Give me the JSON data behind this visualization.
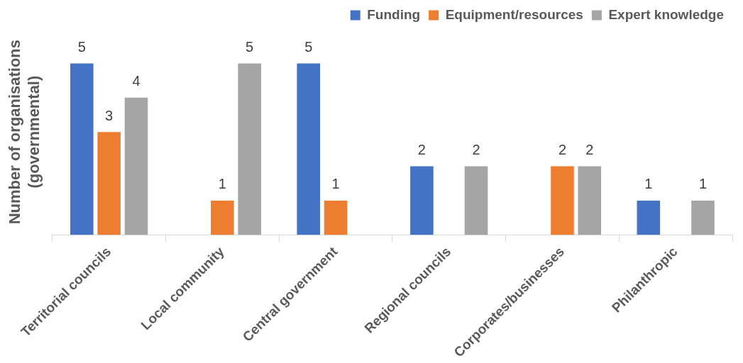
{
  "chart_data": {
    "type": "bar",
    "ylabel": "Number of organisations\n(governmental)",
    "categories": [
      "Territorial councils",
      "Local community",
      "Central government",
      "Regional councils",
      "Corporates/businesses",
      "Philanthropic"
    ],
    "series": [
      {
        "name": "Funding",
        "color": "#4472c4",
        "values": [
          5,
          null,
          5,
          2,
          null,
          1
        ]
      },
      {
        "name": "Equipment/resources",
        "color": "#ed7d31",
        "values": [
          3,
          1,
          1,
          null,
          2,
          null
        ]
      },
      {
        "name": "Expert knowledge",
        "color": "#a5a5a5",
        "values": [
          4,
          5,
          null,
          2,
          2,
          1
        ]
      }
    ],
    "data_labels": true,
    "legend": "top right"
  }
}
